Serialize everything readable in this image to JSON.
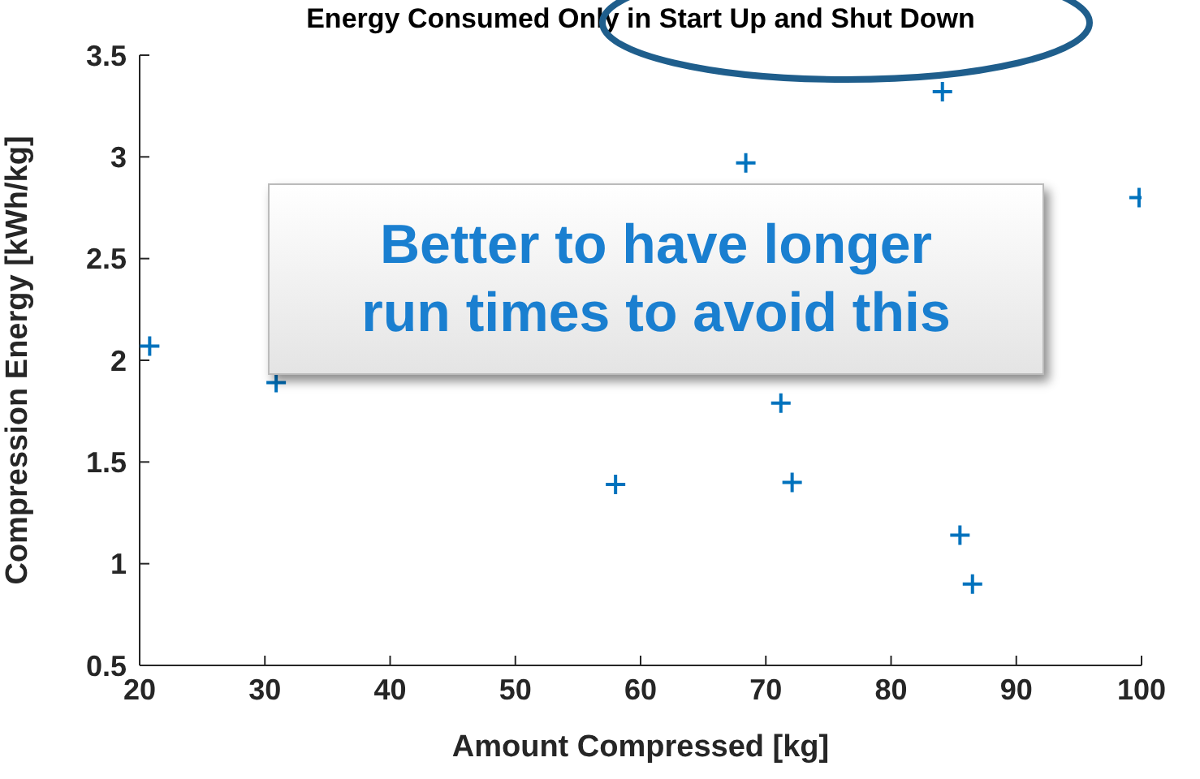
{
  "chart_data": {
    "type": "scatter",
    "title": "Energy Consumed Only in Start Up and Shut Down",
    "xlabel": "Amount Compressed [kg]",
    "ylabel": "Compression Energy [kWh/kg]",
    "annotations": [
      "Better to have longer run times to avoid this"
    ],
    "series": [
      {
        "color": "#0072bd",
        "x": [
          20.8,
          30.9,
          58.0,
          68.4,
          71.2,
          72.1,
          84.1,
          85.5,
          86.5,
          99.8
        ],
        "values": [
          2.07,
          1.89,
          1.39,
          2.97,
          1.79,
          1.4,
          3.32,
          1.14,
          0.9,
          2.8
        ]
      }
    ],
    "marker": "cross",
    "xlim": [
      20,
      100
    ],
    "xticks": [
      20,
      30,
      40,
      50,
      60,
      70,
      80,
      90,
      100
    ],
    "ylim": [
      0.5,
      3.5
    ],
    "yticks": [
      0.5,
      1,
      1.5,
      2,
      2.5,
      3,
      3.5
    ],
    "grid": false,
    "legend": false
  }
}
